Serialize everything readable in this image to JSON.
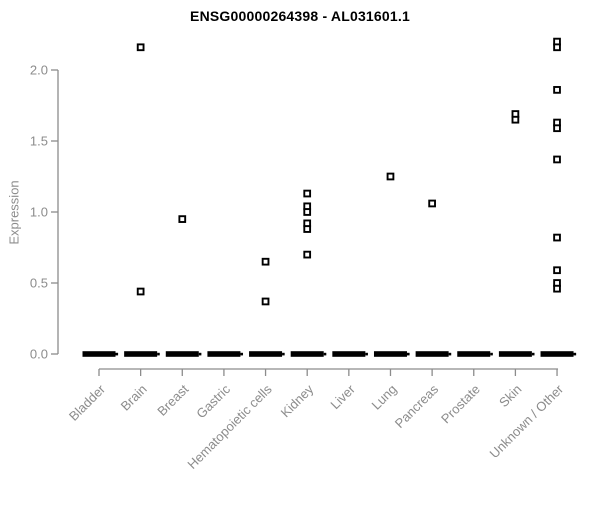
{
  "chart_data": {
    "type": "scatter",
    "title": "ENSG00000264398 - AL031601.1",
    "ylabel": "Expression",
    "xlabel": "",
    "ylim": [
      0,
      2.25
    ],
    "grid": false,
    "legend": "none",
    "marker": "open-square",
    "yticks": [
      {
        "label": "0.0",
        "value": 0.0
      },
      {
        "label": "0.5",
        "value": 0.5
      },
      {
        "label": "1.0",
        "value": 1.0
      },
      {
        "label": "1.5",
        "value": 1.5
      },
      {
        "label": "2.0",
        "value": 2.0
      }
    ],
    "categories": [
      "Bladder",
      "Brain",
      "Breast",
      "Gastric",
      "Hematopoietic cells",
      "Kidney",
      "Liver",
      "Lung",
      "Pancreas",
      "Prostate",
      "Skin",
      "Unknown / Other"
    ],
    "zero_dash_all_categories": true,
    "series": [
      {
        "category": "Bladder",
        "values": []
      },
      {
        "category": "Brain",
        "values": [
          2.16,
          0.44
        ]
      },
      {
        "category": "Breast",
        "values": [
          0.95
        ]
      },
      {
        "category": "Gastric",
        "values": []
      },
      {
        "category": "Hematopoietic cells",
        "values": [
          0.65,
          0.37
        ]
      },
      {
        "category": "Kidney",
        "values": [
          1.13,
          1.04,
          1.0,
          0.92,
          0.88,
          0.7
        ]
      },
      {
        "category": "Liver",
        "values": []
      },
      {
        "category": "Lung",
        "values": [
          1.25
        ]
      },
      {
        "category": "Pancreas",
        "values": [
          1.06
        ]
      },
      {
        "category": "Prostate",
        "values": []
      },
      {
        "category": "Skin",
        "values": [
          1.69,
          1.65
        ]
      },
      {
        "category": "Unknown / Other",
        "values": [
          2.2,
          2.16,
          1.86,
          1.63,
          1.59,
          1.37,
          0.82,
          0.59,
          0.5,
          0.46
        ]
      }
    ],
    "colors": {
      "marker": "#000000",
      "zero_dash": "#000000",
      "axis": "#8c8c8c",
      "tick_label": "#8c8c8c",
      "title": "#000000",
      "background": "#ffffff"
    }
  }
}
